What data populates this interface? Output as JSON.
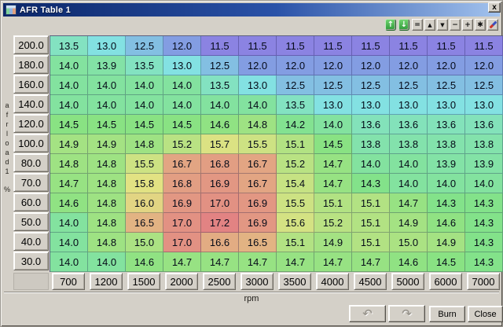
{
  "window": {
    "title": "AFR Table 1",
    "close_glyph": "x"
  },
  "toolbar": {
    "buttons": [
      {
        "name": "send-table-up-button",
        "glyph": "↑",
        "style": "green"
      },
      {
        "name": "fetch-table-down-button",
        "glyph": "↓",
        "style": "green"
      },
      {
        "name": "set-equal-button",
        "glyph": "=",
        "style": "plain"
      },
      {
        "name": "increment-cell-button",
        "glyph": "▲",
        "style": "tri"
      },
      {
        "name": "decrement-cell-button",
        "glyph": "▼",
        "style": "tri"
      },
      {
        "name": "subtract-button",
        "glyph": "−",
        "style": "plain"
      },
      {
        "name": "add-button",
        "glyph": "+",
        "style": "plain"
      },
      {
        "name": "multiply-button",
        "glyph": "✱",
        "style": "plain"
      },
      {
        "name": "scale-pencil-button",
        "glyph": "",
        "style": "pencil"
      }
    ]
  },
  "chart_data": {
    "type": "heatmap",
    "title": "AFR Table 1",
    "xlabel": "rpm",
    "ylabel": "afrload1",
    "ylabel_unit": "%",
    "x": [
      700,
      1200,
      1500,
      2000,
      2500,
      3000,
      3500,
      4000,
      4500,
      5000,
      6000,
      7000
    ],
    "y": [
      200.0,
      180.0,
      160.0,
      140.0,
      120.0,
      100.0,
      80.0,
      70.0,
      60.0,
      50.0,
      40.0,
      30.0
    ],
    "values": [
      [
        13.5,
        13.0,
        12.5,
        12.0,
        11.5,
        11.5,
        11.5,
        11.5,
        11.5,
        11.5,
        11.5,
        11.5
      ],
      [
        14.0,
        13.9,
        13.5,
        13.0,
        12.5,
        12.0,
        12.0,
        12.0,
        12.0,
        12.0,
        12.0,
        12.0
      ],
      [
        14.0,
        14.0,
        14.0,
        14.0,
        13.5,
        13.0,
        12.5,
        12.5,
        12.5,
        12.5,
        12.5,
        12.5
      ],
      [
        14.0,
        14.0,
        14.0,
        14.0,
        14.0,
        14.0,
        13.5,
        13.0,
        13.0,
        13.0,
        13.0,
        13.0
      ],
      [
        14.5,
        14.5,
        14.5,
        14.5,
        14.6,
        14.8,
        14.2,
        14.0,
        13.6,
        13.6,
        13.6,
        13.6
      ],
      [
        14.9,
        14.9,
        14.8,
        15.2,
        15.7,
        15.5,
        15.1,
        14.5,
        13.8,
        13.8,
        13.8,
        13.8
      ],
      [
        14.8,
        14.8,
        15.5,
        16.7,
        16.8,
        16.7,
        15.2,
        14.7,
        14.0,
        14.0,
        13.9,
        13.9
      ],
      [
        14.7,
        14.8,
        15.8,
        16.8,
        16.9,
        16.7,
        15.4,
        14.7,
        14.3,
        14.0,
        14.0,
        14.0
      ],
      [
        14.6,
        14.8,
        16.0,
        16.9,
        17.0,
        16.9,
        15.5,
        15.1,
        15.1,
        14.7,
        14.3,
        14.3
      ],
      [
        14.0,
        14.8,
        16.5,
        17.0,
        17.2,
        16.9,
        15.6,
        15.2,
        15.1,
        14.9,
        14.6,
        14.3
      ],
      [
        14.0,
        14.8,
        15.0,
        17.0,
        16.6,
        16.5,
        15.1,
        14.9,
        15.1,
        15.0,
        14.9,
        14.3
      ],
      [
        14.0,
        14.0,
        14.6,
        14.7,
        14.7,
        14.7,
        14.7,
        14.7,
        14.7,
        14.6,
        14.5,
        14.3
      ]
    ],
    "color_scale": {
      "min_value": 11.5,
      "max_value": 17.2,
      "hue_at_min": 245,
      "hue_at_max": 0,
      "saturation_pct": 62,
      "lightness_pct": 70,
      "min_color_hint": "#9b97e6",
      "mid_color_hint": "#8fd89a",
      "max_color_hint": "#ee8f78"
    }
  },
  "footer": {
    "undo_glyph": "↶",
    "redo_glyph": "↷",
    "burn_label": "Burn",
    "close_label": "Close"
  }
}
